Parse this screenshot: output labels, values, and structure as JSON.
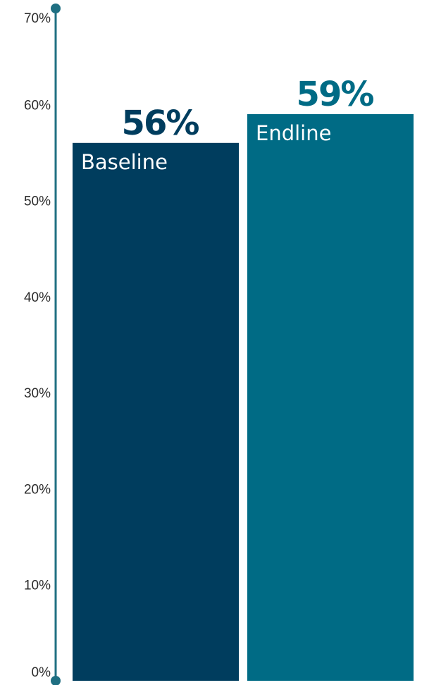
{
  "chart_data": {
    "type": "bar",
    "title": "",
    "xlabel": "",
    "ylabel": "",
    "categories": [
      "Baseline",
      "Endline"
    ],
    "values": [
      56,
      59
    ],
    "value_labels": [
      "56%",
      "59%"
    ],
    "ylim": [
      0,
      70
    ],
    "y_ticks": [
      0,
      10,
      20,
      30,
      40,
      50,
      60,
      70
    ],
    "y_tick_labels": [
      "0%",
      "10%",
      "20%",
      "30%",
      "40%",
      "50%",
      "60%",
      "70%"
    ],
    "grid": false,
    "legend": "none",
    "colors": {
      "bars": [
        "#003d5e",
        "#006b85"
      ],
      "axis": "#1f6f82"
    }
  }
}
